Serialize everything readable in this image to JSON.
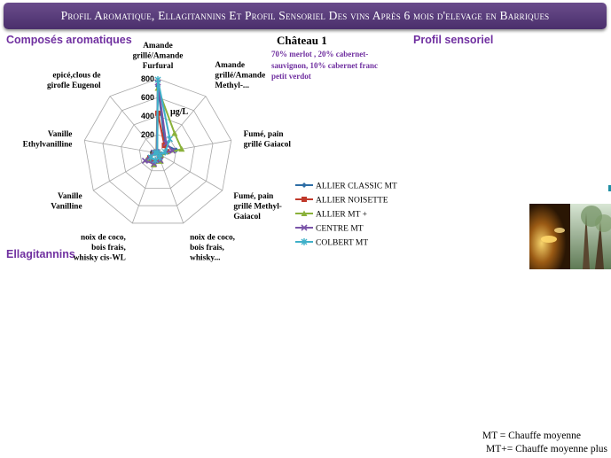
{
  "header": {
    "title": "Profil Aromatique, Ellagitannins Et Profil Sensoriel Des vins Après 6 mois d'elevage en Barriques"
  },
  "sections": {
    "aromatic": "Composés aromatiques",
    "sensory": "Profil sensoriel",
    "ellagitannins": "Ellagitannins"
  },
  "chateau": {
    "name": "Château 1",
    "blend": "70% merlot , 20% cabernet-sauvignon, 10% cabernet franc petit verdot"
  },
  "footnotes": {
    "mt": "MT = Chauffe moyenne",
    "mt_plus": "MT+= Chauffe moyenne plus"
  },
  "chart_data": {
    "type": "radar",
    "unit_label": "µg/L",
    "rmin": 0,
    "rmax": 800,
    "ticks": [
      0,
      200,
      400,
      600,
      800
    ],
    "categories": [
      [
        "Amande",
        "grillé/Amande",
        "Furfural"
      ],
      [
        "Amande",
        "grillé/Amande",
        "Methyl-..."
      ],
      [
        "Fumé, pain",
        "grillé Gaiacol"
      ],
      [
        "Fumé, pain",
        "grillé Methyl-",
        "Gaiacol"
      ],
      [
        "noix de coco,",
        "bois frais,",
        "whisky..."
      ],
      [
        "noix de coco,",
        "bois frais,",
        "whisky cis-WL"
      ],
      [
        "Vanille",
        "Vanilline"
      ],
      [
        "Vanille",
        "Ethylvanilline"
      ],
      [
        "epicé,clous de",
        "girofle Eugenol"
      ]
    ],
    "series": [
      {
        "name": "ALLIER CLASSIC MT",
        "color": "#2e6ea6",
        "marker": "diamond",
        "values": [
          720,
          120,
          200,
          30,
          70,
          110,
          120,
          40,
          20
        ]
      },
      {
        "name": "ALLIER NOISETTE",
        "color": "#c0392b",
        "marker": "square",
        "values": [
          430,
          110,
          100,
          20,
          60,
          90,
          100,
          30,
          15
        ]
      },
      {
        "name": "ALLIER MT +",
        "color": "#8ab13a",
        "marker": "triangle",
        "values": [
          700,
          280,
          260,
          40,
          90,
          130,
          140,
          50,
          25
        ]
      },
      {
        "name": "CENTRE MT",
        "color": "#7a54a8",
        "marker": "x",
        "values": [
          760,
          140,
          160,
          25,
          80,
          120,
          160,
          45,
          20
        ]
      },
      {
        "name": "COLBERT MT",
        "color": "#3fb0c9",
        "marker": "star",
        "values": [
          790,
          200,
          80,
          20,
          50,
          80,
          90,
          30,
          10
        ]
      }
    ]
  }
}
